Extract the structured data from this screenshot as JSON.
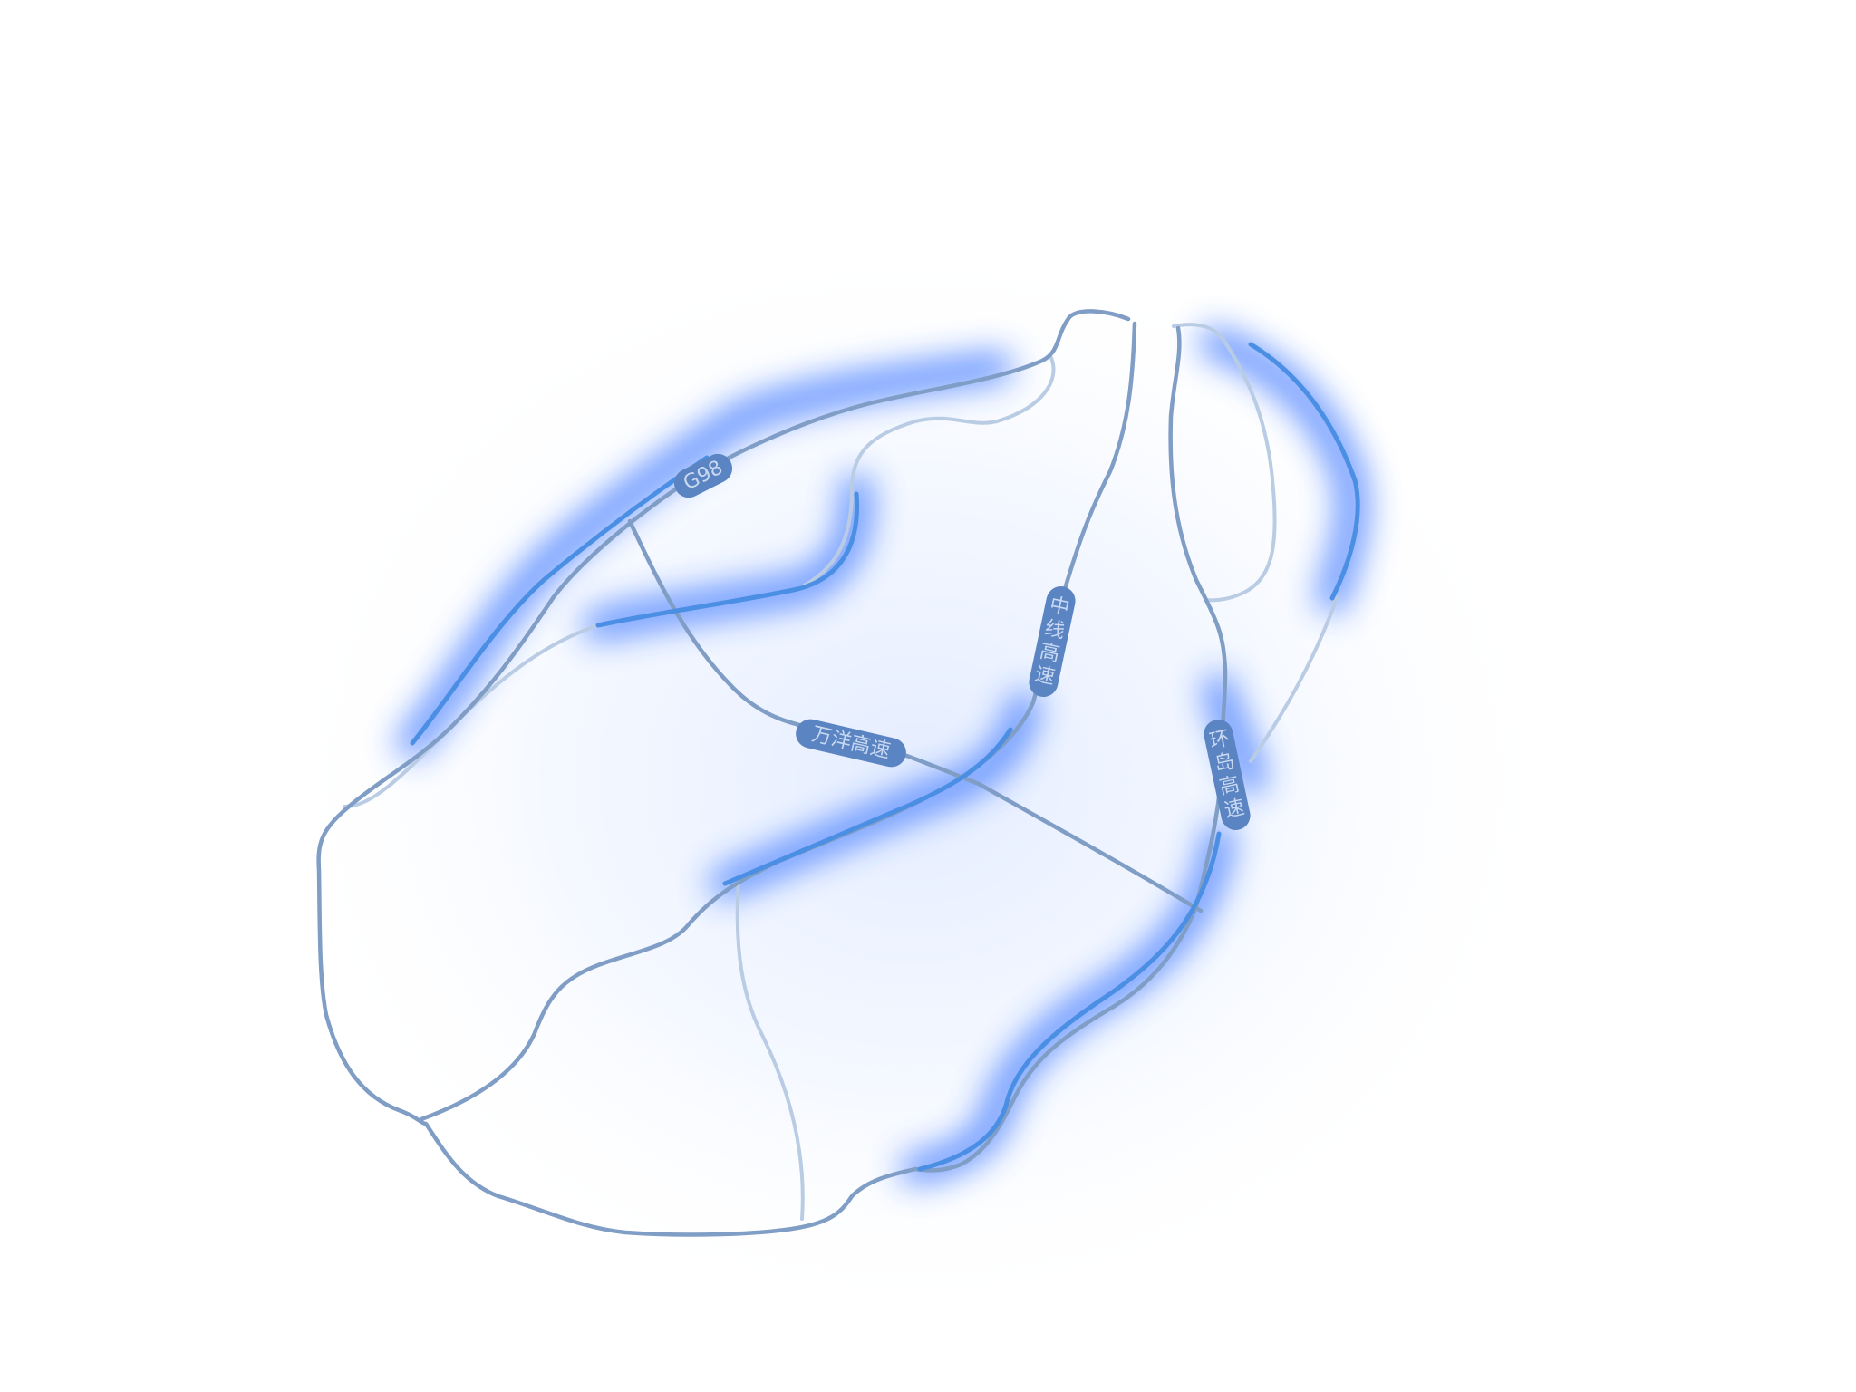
{
  "map": {
    "colors": {
      "background": "#ffffff",
      "halo": "#2f6dff",
      "road_main": "#7f9dc5",
      "road_faint": "#b9cce4",
      "road_highlight": "#4a8fe3",
      "label_bg": "#5a84c2",
      "label_text": "#c9d8f2"
    },
    "road_labels": {
      "g98": "G98",
      "wanyang": "万洋高速",
      "zhongxian": "中线高速",
      "huandao": "环岛高速"
    }
  }
}
